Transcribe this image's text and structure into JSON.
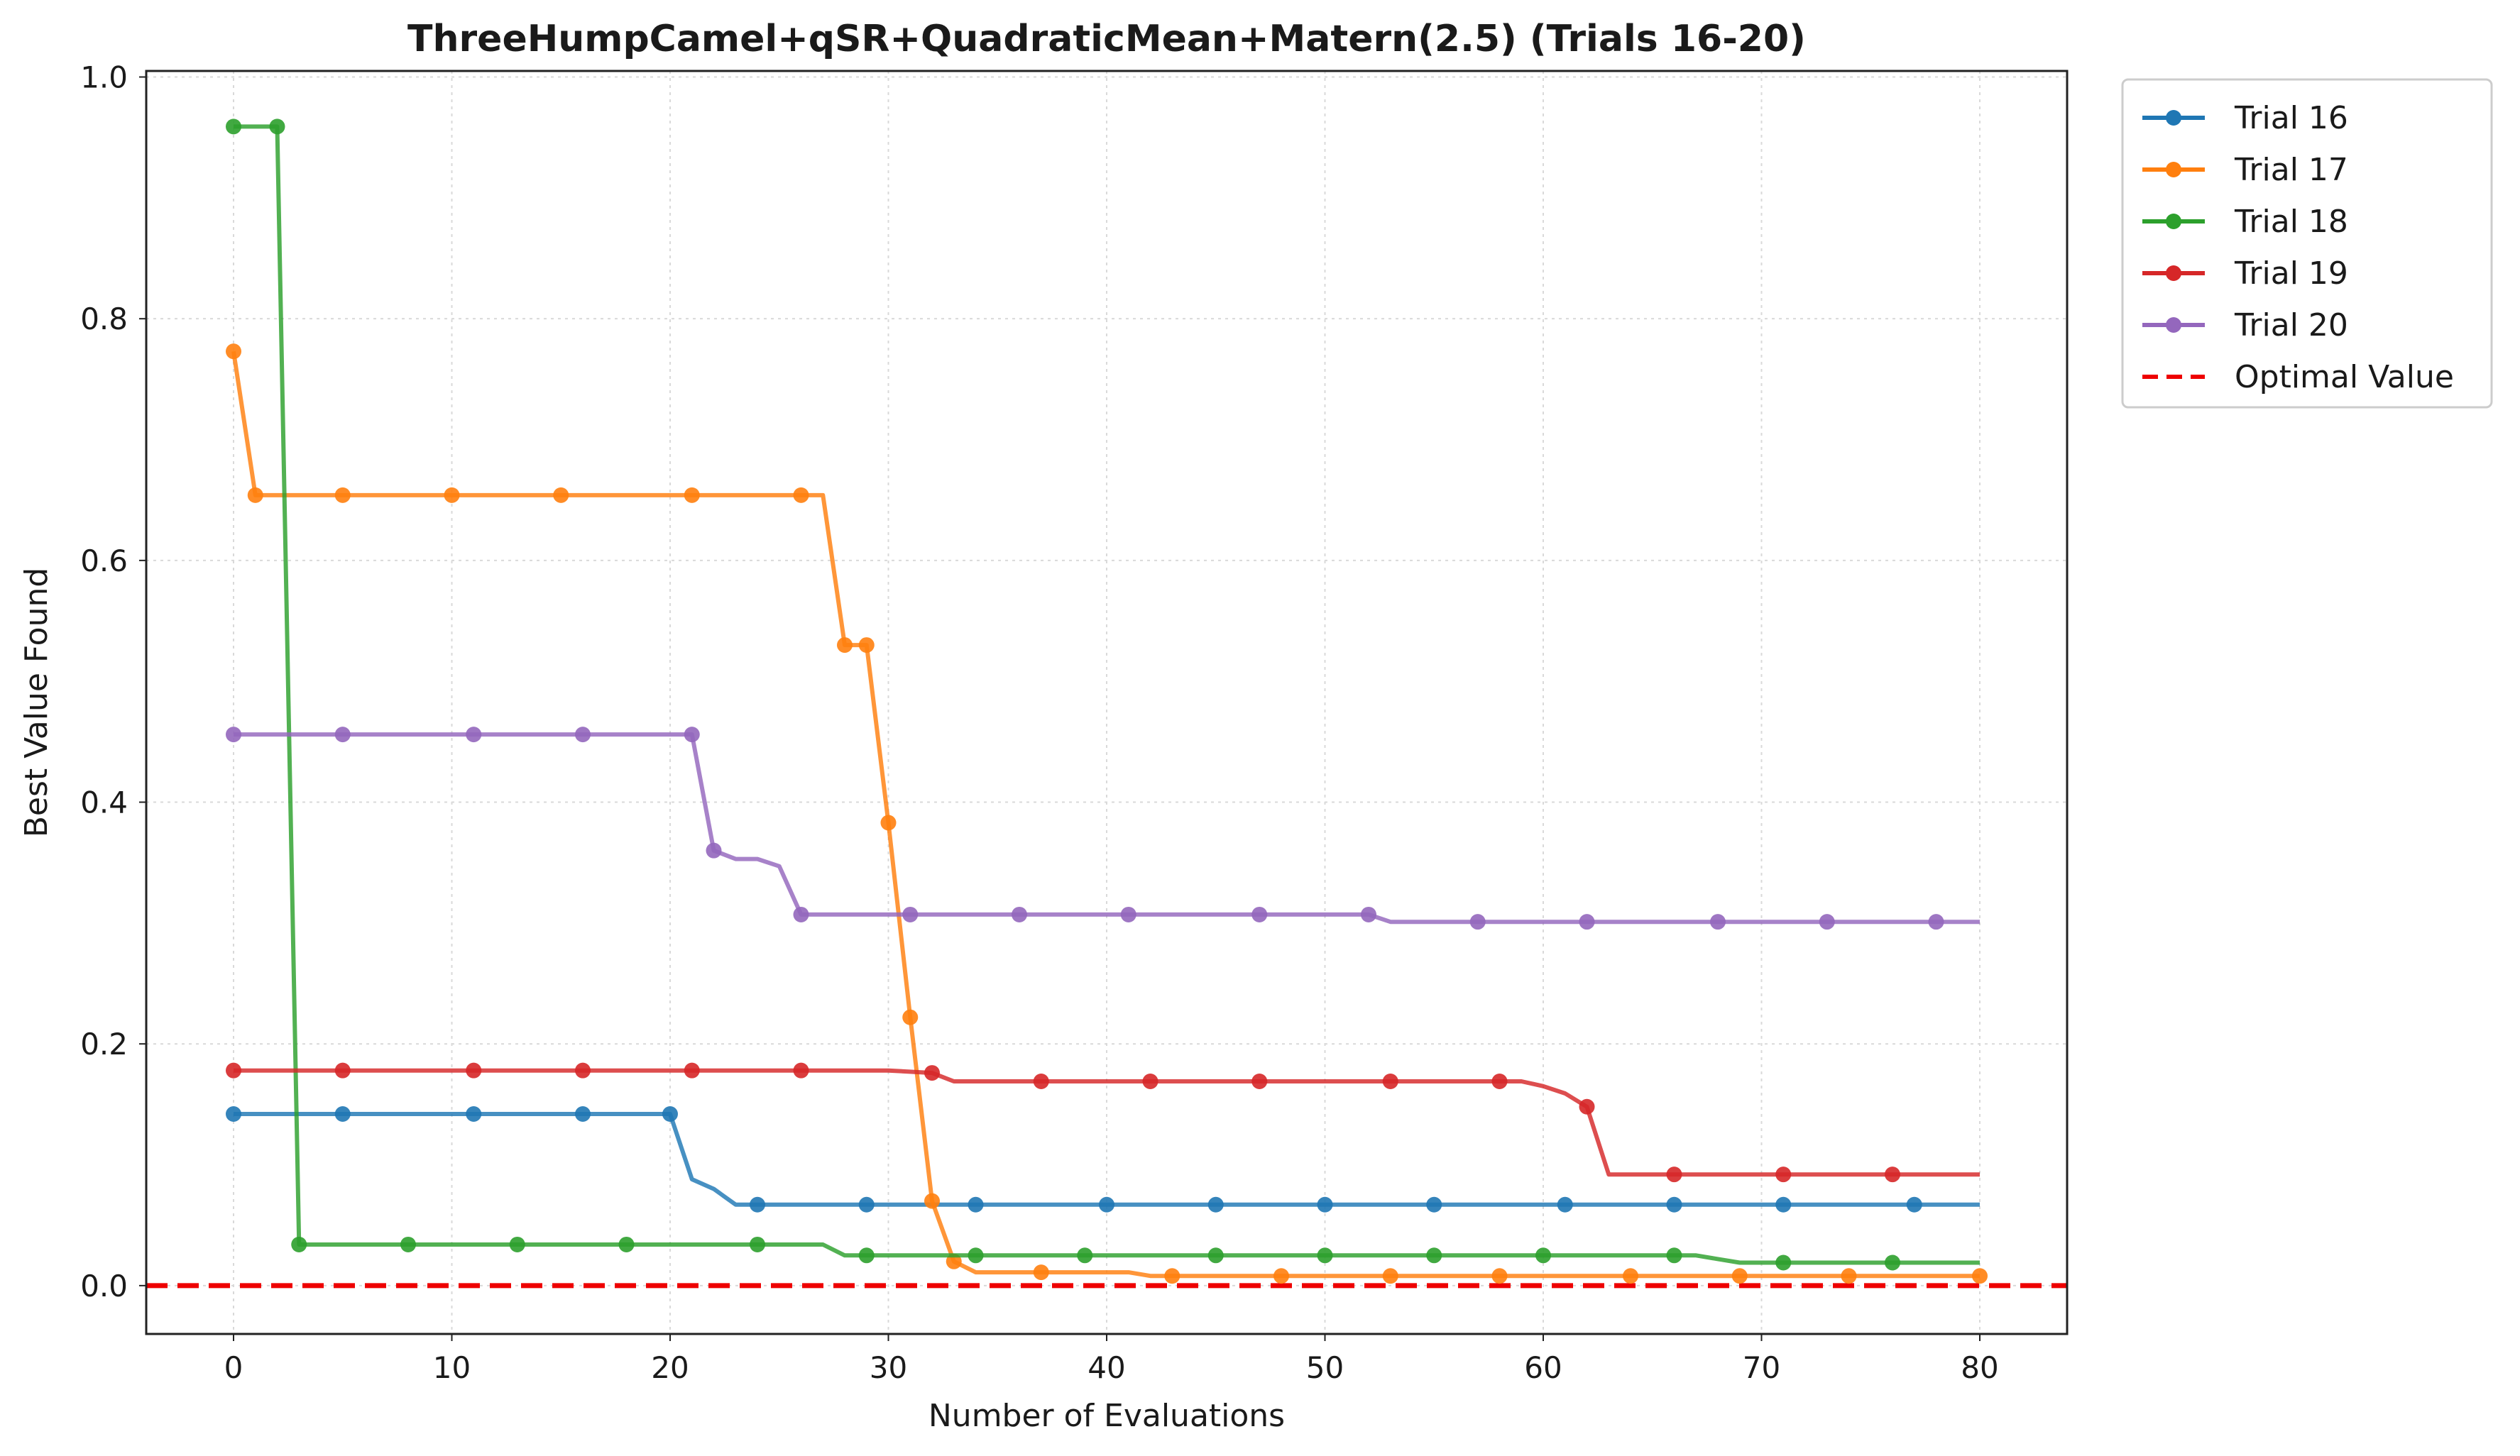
{
  "chart_data": {
    "type": "line",
    "title": "ThreeHumpCamel+qSR+QuadraticMean+Matern(2.5) (Trials 16-20)",
    "xlabel": "Number of Evaluations",
    "ylabel": "Best Value Found",
    "xlim": [
      -4,
      84
    ],
    "ylim": [
      -0.04,
      1.005
    ],
    "xticks": [
      0,
      10,
      20,
      30,
      40,
      50,
      60,
      70,
      80
    ],
    "yticks": [
      0.0,
      0.2,
      0.4,
      0.6,
      0.8,
      1.0
    ],
    "xtick_labels": [
      "0",
      "10",
      "20",
      "30",
      "40",
      "50",
      "60",
      "70",
      "80"
    ],
    "ytick_labels": [
      "0.0",
      "0.2",
      "0.4",
      "0.6",
      "0.8",
      "1.0"
    ],
    "grid": true,
    "legend_position": "outside-top-right",
    "series": [
      {
        "name": "Trial 16",
        "color": "#1f77b4",
        "line": [
          [
            0,
            0.142
          ],
          [
            20,
            0.142
          ],
          [
            21,
            0.088
          ],
          [
            22,
            0.08
          ],
          [
            23,
            0.067
          ],
          [
            80,
            0.067
          ]
        ],
        "markers": [
          [
            0,
            0.142
          ],
          [
            5,
            0.142
          ],
          [
            11,
            0.142
          ],
          [
            16,
            0.142
          ],
          [
            20,
            0.142
          ],
          [
            24,
            0.067
          ],
          [
            29,
            0.067
          ],
          [
            34,
            0.067
          ],
          [
            40,
            0.067
          ],
          [
            45,
            0.067
          ],
          [
            50,
            0.067
          ],
          [
            55,
            0.067
          ],
          [
            61,
            0.067
          ],
          [
            66,
            0.067
          ],
          [
            71,
            0.067
          ],
          [
            77,
            0.067
          ]
        ]
      },
      {
        "name": "Trial 17",
        "color": "#ff7f0e",
        "line": [
          [
            0,
            0.773
          ],
          [
            1,
            0.654
          ],
          [
            27,
            0.654
          ],
          [
            28,
            0.53
          ],
          [
            29,
            0.53
          ],
          [
            30,
            0.383
          ],
          [
            31,
            0.222
          ],
          [
            32,
            0.07
          ],
          [
            33,
            0.02
          ],
          [
            34,
            0.011
          ],
          [
            41,
            0.011
          ],
          [
            42,
            0.008
          ],
          [
            80,
            0.008
          ]
        ],
        "markers": [
          [
            0,
            0.773
          ],
          [
            1,
            0.654
          ],
          [
            5,
            0.654
          ],
          [
            10,
            0.654
          ],
          [
            15,
            0.654
          ],
          [
            21,
            0.654
          ],
          [
            26,
            0.654
          ],
          [
            28,
            0.53
          ],
          [
            29,
            0.53
          ],
          [
            30,
            0.383
          ],
          [
            31,
            0.222
          ],
          [
            32,
            0.07
          ],
          [
            33,
            0.02
          ],
          [
            37,
            0.011
          ],
          [
            43,
            0.008
          ],
          [
            48,
            0.008
          ],
          [
            53,
            0.008
          ],
          [
            58,
            0.008
          ],
          [
            64,
            0.008
          ],
          [
            69,
            0.008
          ],
          [
            74,
            0.008
          ],
          [
            80,
            0.008
          ]
        ]
      },
      {
        "name": "Trial 18",
        "color": "#2ca02c",
        "line": [
          [
            0,
            0.959
          ],
          [
            2,
            0.959
          ],
          [
            3,
            0.034
          ],
          [
            27,
            0.034
          ],
          [
            28,
            0.025
          ],
          [
            67,
            0.025
          ],
          [
            68,
            0.022
          ],
          [
            69,
            0.019
          ],
          [
            80,
            0.019
          ]
        ],
        "markers": [
          [
            0,
            0.959
          ],
          [
            2,
            0.959
          ],
          [
            3,
            0.034
          ],
          [
            8,
            0.034
          ],
          [
            13,
            0.034
          ],
          [
            18,
            0.034
          ],
          [
            24,
            0.034
          ],
          [
            29,
            0.025
          ],
          [
            34,
            0.025
          ],
          [
            39,
            0.025
          ],
          [
            45,
            0.025
          ],
          [
            50,
            0.025
          ],
          [
            55,
            0.025
          ],
          [
            60,
            0.025
          ],
          [
            66,
            0.025
          ],
          [
            71,
            0.019
          ],
          [
            76,
            0.019
          ]
        ]
      },
      {
        "name": "Trial 19",
        "color": "#d62728",
        "line": [
          [
            0,
            0.178
          ],
          [
            30,
            0.178
          ],
          [
            32,
            0.176
          ],
          [
            33,
            0.169
          ],
          [
            59,
            0.169
          ],
          [
            60,
            0.165
          ],
          [
            61,
            0.159
          ],
          [
            62,
            0.148
          ],
          [
            63,
            0.092
          ],
          [
            80,
            0.092
          ]
        ],
        "markers": [
          [
            0,
            0.178
          ],
          [
            5,
            0.178
          ],
          [
            11,
            0.178
          ],
          [
            16,
            0.178
          ],
          [
            21,
            0.178
          ],
          [
            26,
            0.178
          ],
          [
            32,
            0.176
          ],
          [
            37,
            0.169
          ],
          [
            42,
            0.169
          ],
          [
            47,
            0.169
          ],
          [
            53,
            0.169
          ],
          [
            58,
            0.169
          ],
          [
            62,
            0.148
          ],
          [
            66,
            0.092
          ],
          [
            71,
            0.092
          ],
          [
            76,
            0.092
          ]
        ]
      },
      {
        "name": "Trial 20",
        "color": "#9467bd",
        "line": [
          [
            0,
            0.456
          ],
          [
            21,
            0.456
          ],
          [
            22,
            0.36
          ],
          [
            23,
            0.353
          ],
          [
            24,
            0.353
          ],
          [
            25,
            0.347
          ],
          [
            26,
            0.307
          ],
          [
            52,
            0.307
          ],
          [
            53,
            0.301
          ],
          [
            80,
            0.301
          ]
        ],
        "markers": [
          [
            0,
            0.456
          ],
          [
            5,
            0.456
          ],
          [
            11,
            0.456
          ],
          [
            16,
            0.456
          ],
          [
            21,
            0.456
          ],
          [
            22,
            0.36
          ],
          [
            26,
            0.307
          ],
          [
            31,
            0.307
          ],
          [
            36,
            0.307
          ],
          [
            41,
            0.307
          ],
          [
            47,
            0.307
          ],
          [
            52,
            0.307
          ],
          [
            57,
            0.301
          ],
          [
            62,
            0.301
          ],
          [
            68,
            0.301
          ],
          [
            73,
            0.301
          ],
          [
            78,
            0.301
          ]
        ]
      }
    ],
    "reference_line": {
      "name": "Optimal Value",
      "y": 0.0,
      "color": "#ee0000",
      "style": "dashed"
    }
  }
}
